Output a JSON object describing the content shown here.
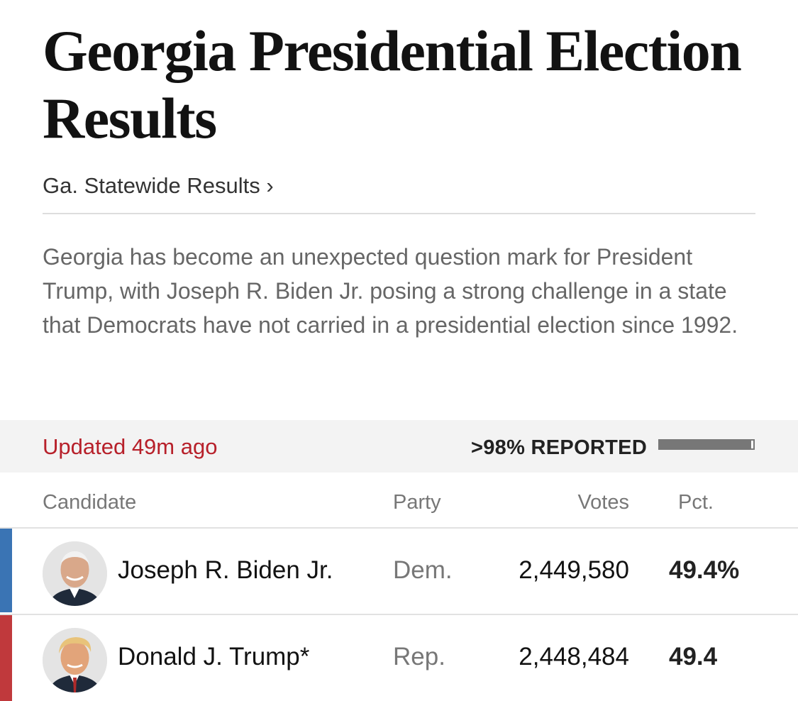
{
  "page": {
    "title": "Georgia Presidential Election Results",
    "breadcrumb": "Ga. Statewide Results ›",
    "summary": "Georgia has become an unexpected question mark for President Trump, with Joseph R. Biden Jr. posing a strong challenge in a state that Democrats have not carried in a presidential election since 1992."
  },
  "status": {
    "updated": "Updated 49m ago",
    "reported_label": ">98% REPORTED",
    "reported_fraction": 0.98
  },
  "table": {
    "headers": {
      "candidate": "Candidate",
      "party": "Party",
      "votes": "Votes",
      "pct": "Pct."
    },
    "rows": [
      {
        "name": "Joseph R. Biden Jr.",
        "party": "Dem.",
        "votes": "2,449,580",
        "pct": "49.4%",
        "party_color": "#3a74b4",
        "avatar_icon": "candidate-portrait-icon"
      },
      {
        "name": "Donald J. Trump*",
        "party": "Rep.",
        "votes": "2,448,484",
        "pct": "49.4",
        "party_color": "#c0393c",
        "avatar_icon": "candidate-portrait-icon"
      }
    ]
  },
  "colors": {
    "updated_red": "#b7202a",
    "dem_blue": "#3a74b4",
    "rep_red": "#c0393c"
  }
}
